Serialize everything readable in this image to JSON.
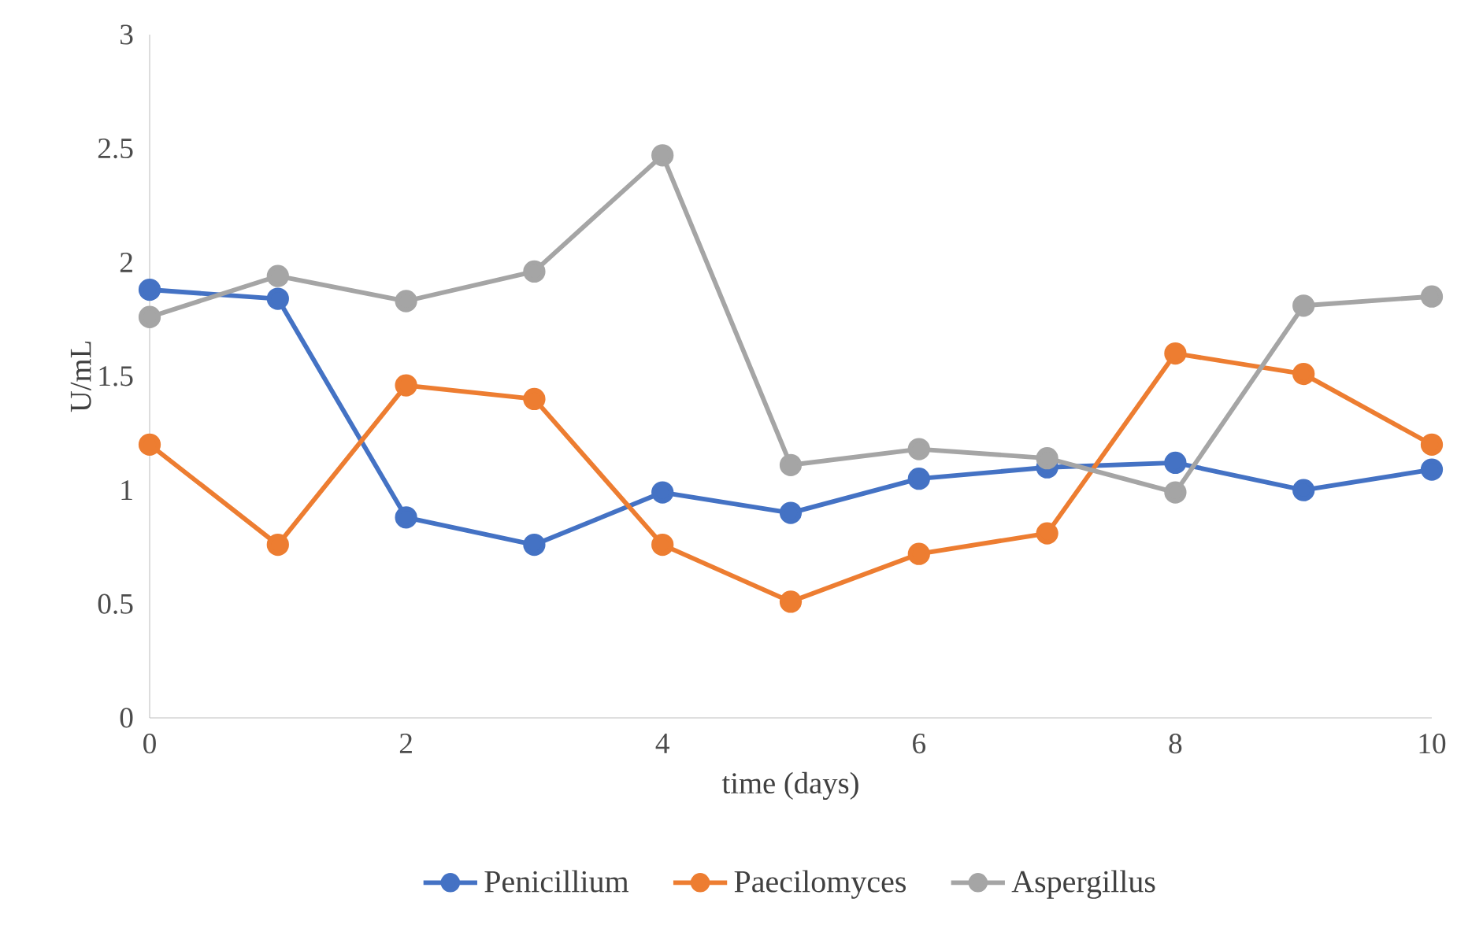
{
  "chart_data": {
    "type": "line",
    "xlabel": "time (days)",
    "ylabel": "U/mL",
    "x": [
      0,
      1,
      2,
      3,
      4,
      5,
      6,
      7,
      8,
      9,
      10
    ],
    "xlim": [
      0,
      10
    ],
    "xticks": [
      0,
      2,
      4,
      6,
      8,
      10
    ],
    "ylim": [
      0,
      3
    ],
    "yticks": [
      0,
      0.5,
      1,
      1.5,
      2,
      2.5,
      3
    ],
    "grid": false,
    "legend": "bottom",
    "marker": "circle",
    "line_style": "solid",
    "series": [
      {
        "name": "Penicillium",
        "color": "#4472c4",
        "values": [
          1.88,
          1.84,
          0.88,
          0.76,
          0.99,
          0.9,
          1.05,
          1.1,
          1.12,
          1.0,
          1.09
        ]
      },
      {
        "name": "Paecilomyces",
        "color": "#ed7d31",
        "values": [
          1.2,
          0.76,
          1.46,
          1.4,
          0.76,
          0.51,
          0.72,
          0.81,
          1.6,
          1.51,
          1.2
        ]
      },
      {
        "name": "Aspergillus",
        "color": "#a5a5a5",
        "values": [
          1.76,
          1.94,
          1.83,
          1.96,
          2.47,
          1.11,
          1.18,
          1.14,
          0.99,
          1.81,
          1.85
        ]
      }
    ]
  }
}
